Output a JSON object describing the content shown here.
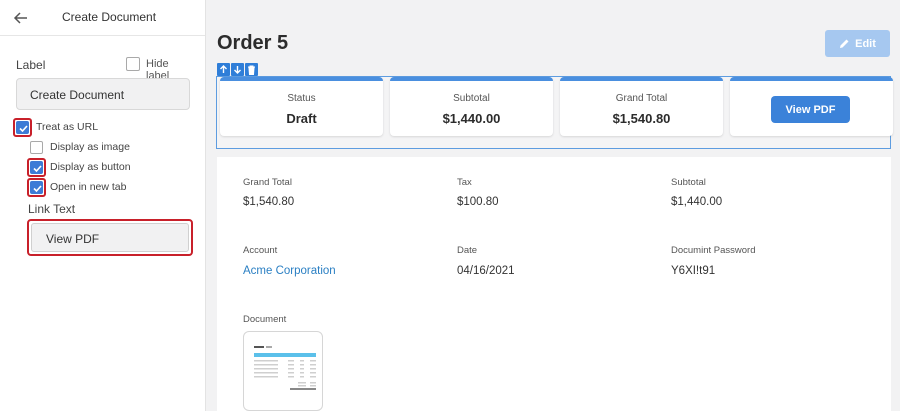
{
  "sidebar": {
    "title": "Create Document",
    "label_heading": "Label",
    "hide_label": "Hide label",
    "label_value": "Create Document",
    "options": {
      "treat_as_url": "Treat as URL",
      "display_as_image": "Display as image",
      "display_as_button": "Display as button",
      "open_in_new_tab": "Open in new tab"
    },
    "link_text_label": "Link Text",
    "link_text_value": "View PDF"
  },
  "main": {
    "title": "Order 5",
    "edit_label": "Edit",
    "cards": {
      "status": {
        "label": "Status",
        "value": "Draft"
      },
      "subtotal": {
        "label": "Subtotal",
        "value": "$1,440.00"
      },
      "grand_total": {
        "label": "Grand Total",
        "value": "$1,540.80"
      },
      "view_pdf": "View PDF"
    },
    "fields": {
      "grand_total": {
        "label": "Grand Total",
        "value": "$1,540.80"
      },
      "tax": {
        "label": "Tax",
        "value": "$100.80"
      },
      "subtotal": {
        "label": "Subtotal",
        "value": "$1,440.00"
      },
      "account": {
        "label": "Account",
        "value": "Acme Corporation"
      },
      "date": {
        "label": "Date",
        "value": "04/16/2021"
      },
      "password": {
        "label": "Documint Password",
        "value": "Y6XI!t91"
      },
      "document": {
        "label": "Document"
      }
    }
  },
  "colors": {
    "accent": "#3b82d9",
    "highlight": "#c8202a",
    "link": "#2a7fc3"
  }
}
